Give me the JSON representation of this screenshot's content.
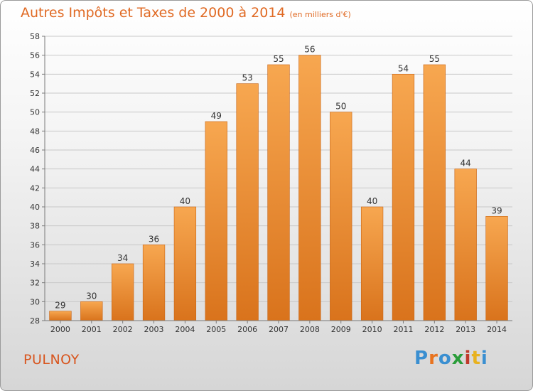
{
  "title": "Autres Impôts et Taxes de 2000 à 2014",
  "subtitle": "(en milliers d'€)",
  "commune": "PULNOY",
  "brand": {
    "text": "Proxiti",
    "letter_colors": [
      "#3a8fd1",
      "#e8731f",
      "#3a8fd1",
      "#2a9d3a",
      "#c0392b",
      "#e8b21f",
      "#3a8fd1"
    ]
  },
  "colors": {
    "bar_light": "#f7a750",
    "bar_dark": "#d9731c",
    "axis": "#7a7a7a",
    "grid": "#c8c8c8",
    "text": "#333333"
  },
  "chart_data": {
    "type": "bar",
    "categories": [
      "2000",
      "2001",
      "2002",
      "2003",
      "2004",
      "2005",
      "2006",
      "2007",
      "2008",
      "2009",
      "2010",
      "2011",
      "2012",
      "2013",
      "2014"
    ],
    "values": [
      29,
      30,
      34,
      36,
      40,
      49,
      53,
      55,
      56,
      50,
      40,
      54,
      55,
      44,
      39
    ],
    "ylim": [
      28,
      58
    ],
    "yticks": [
      28,
      30,
      32,
      34,
      36,
      38,
      40,
      42,
      44,
      46,
      48,
      50,
      52,
      54,
      56,
      58
    ],
    "grid": true,
    "data_labels": true
  }
}
